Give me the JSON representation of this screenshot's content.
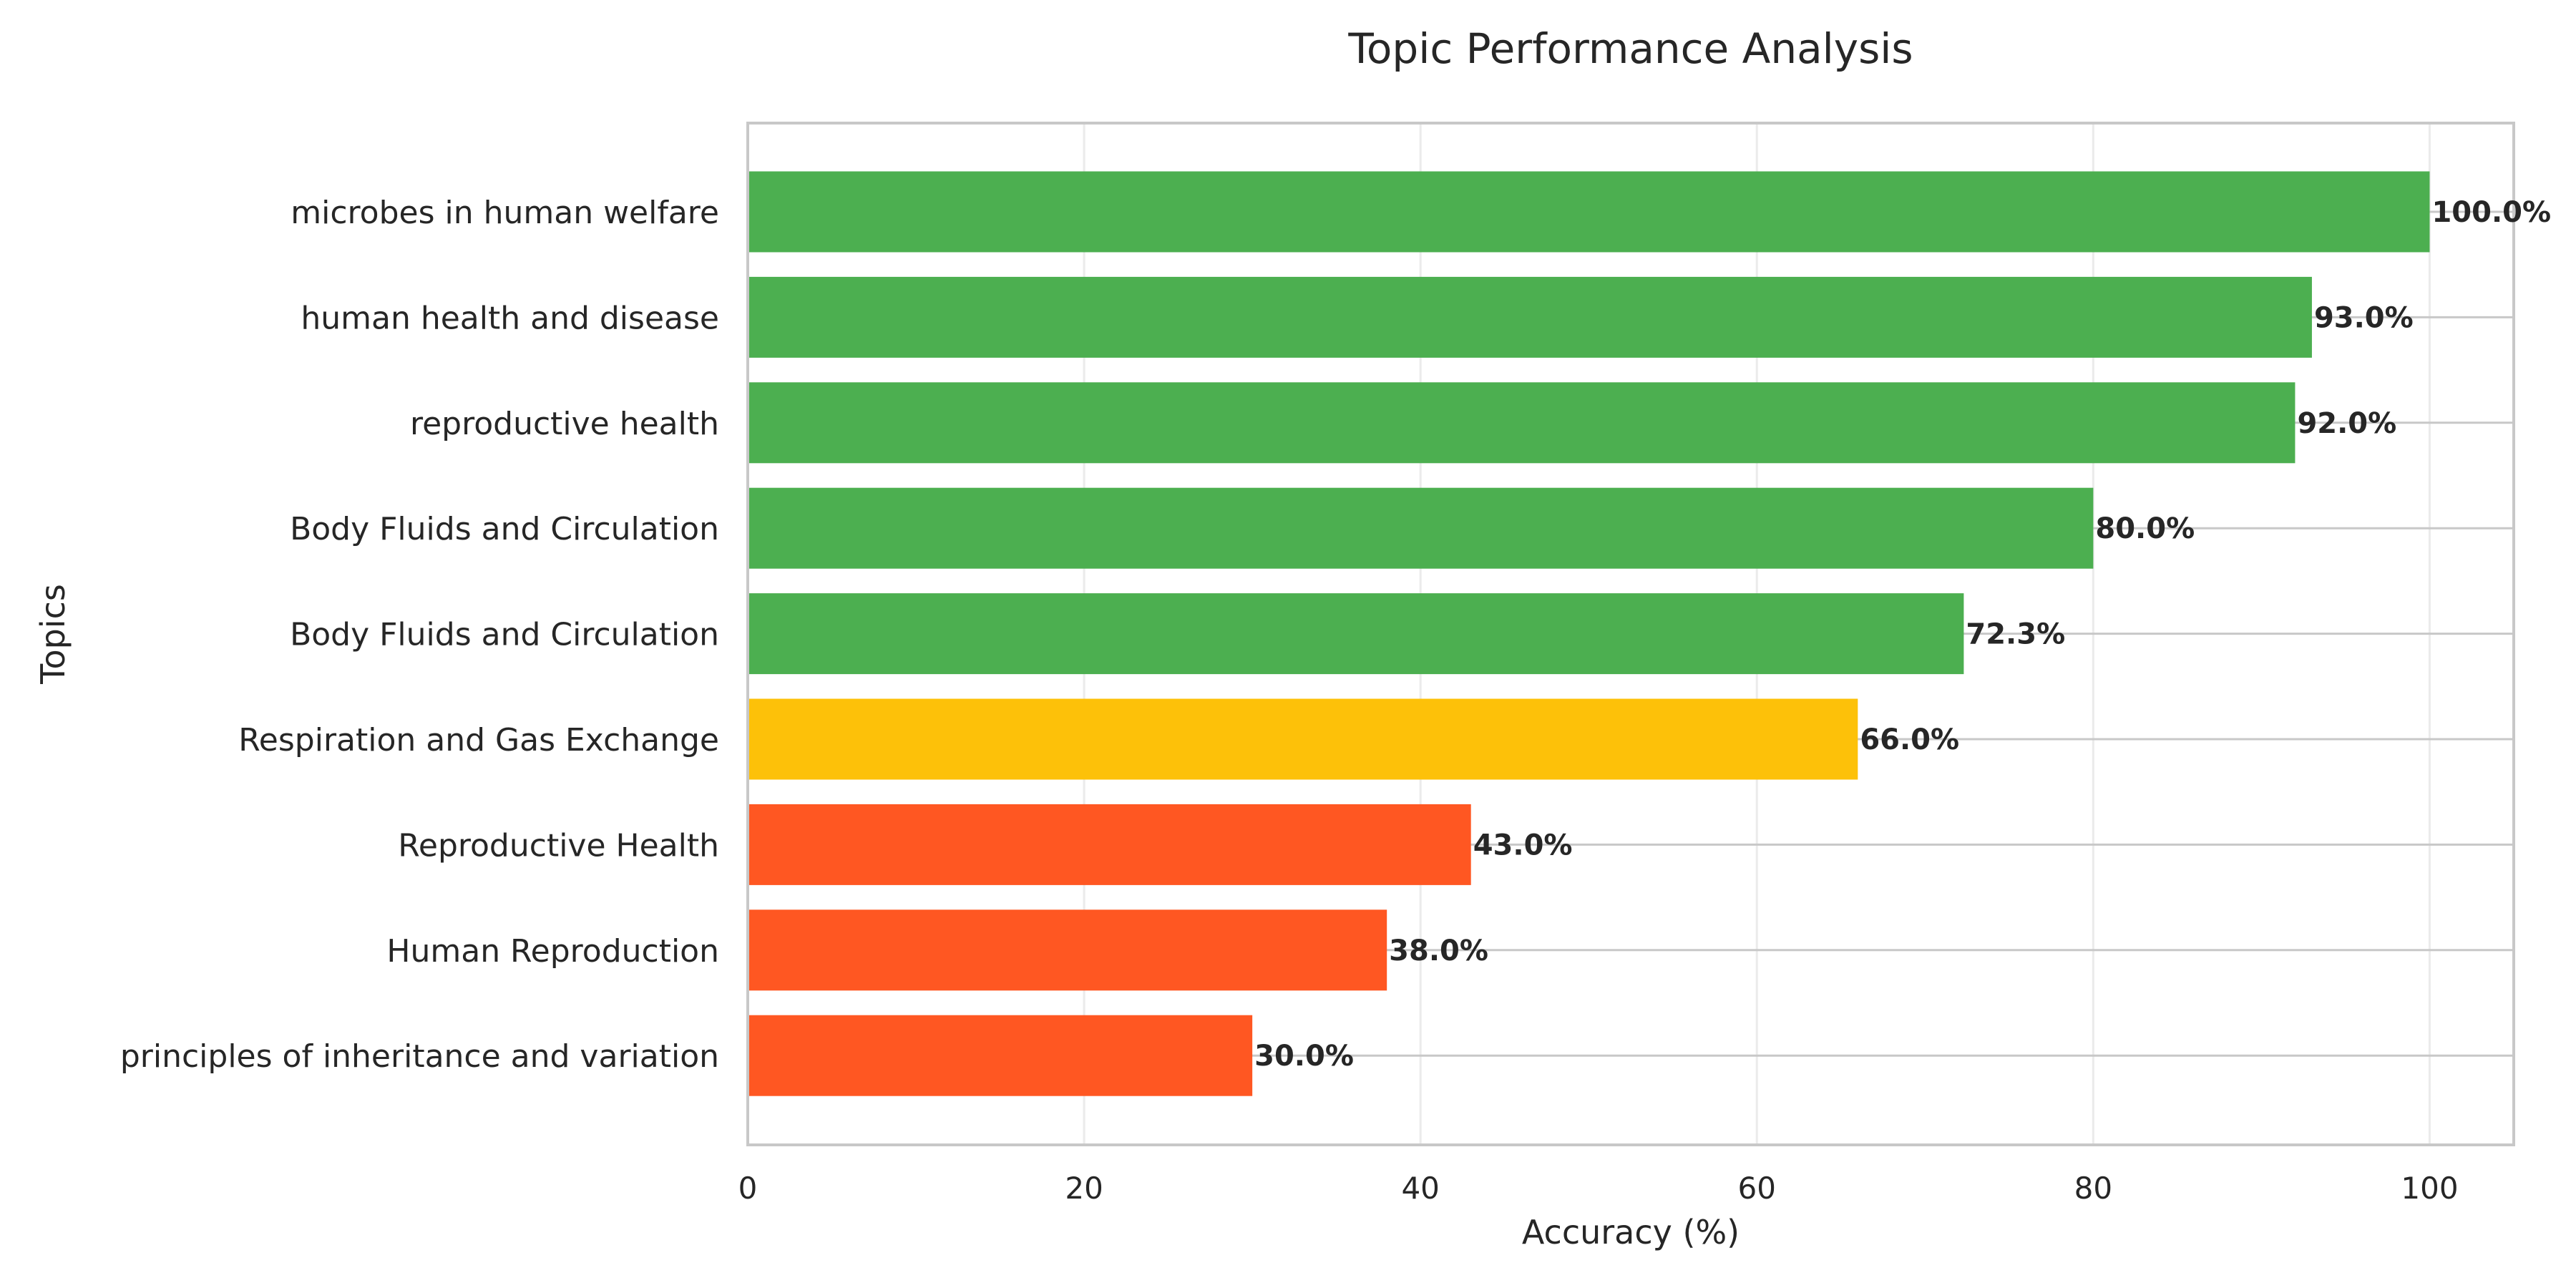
{
  "chart_data": {
    "type": "bar",
    "orientation": "horizontal",
    "title": "Topic Performance Analysis",
    "xlabel": "Accuracy (%)",
    "ylabel": "Topics",
    "xlim": [
      0,
      105
    ],
    "xticks": [
      "0",
      "20",
      "40",
      "60",
      "80",
      "100"
    ],
    "grid": true,
    "categories": [
      "microbes in human welfare",
      "human health and disease",
      "reproductive health",
      "Body Fluids and Circulation",
      "Body Fluids and Circulation",
      "Respiration and Gas Exchange",
      "Reproductive Health",
      "Human Reproduction",
      "principles of inheritance and variation"
    ],
    "values": [
      100.0,
      93.0,
      92.0,
      80.0,
      72.3,
      66.0,
      43.0,
      38.0,
      30.0
    ],
    "value_labels": [
      "100.0%",
      "93.0%",
      "92.0%",
      "80.0%",
      "72.3%",
      "66.0%",
      "43.0%",
      "38.0%",
      "30.0%"
    ],
    "colors": [
      "#4caf50",
      "#4caf50",
      "#4caf50",
      "#4caf50",
      "#4caf50",
      "#fdc109",
      "#ff5722",
      "#ff5722",
      "#ff5722"
    ]
  }
}
